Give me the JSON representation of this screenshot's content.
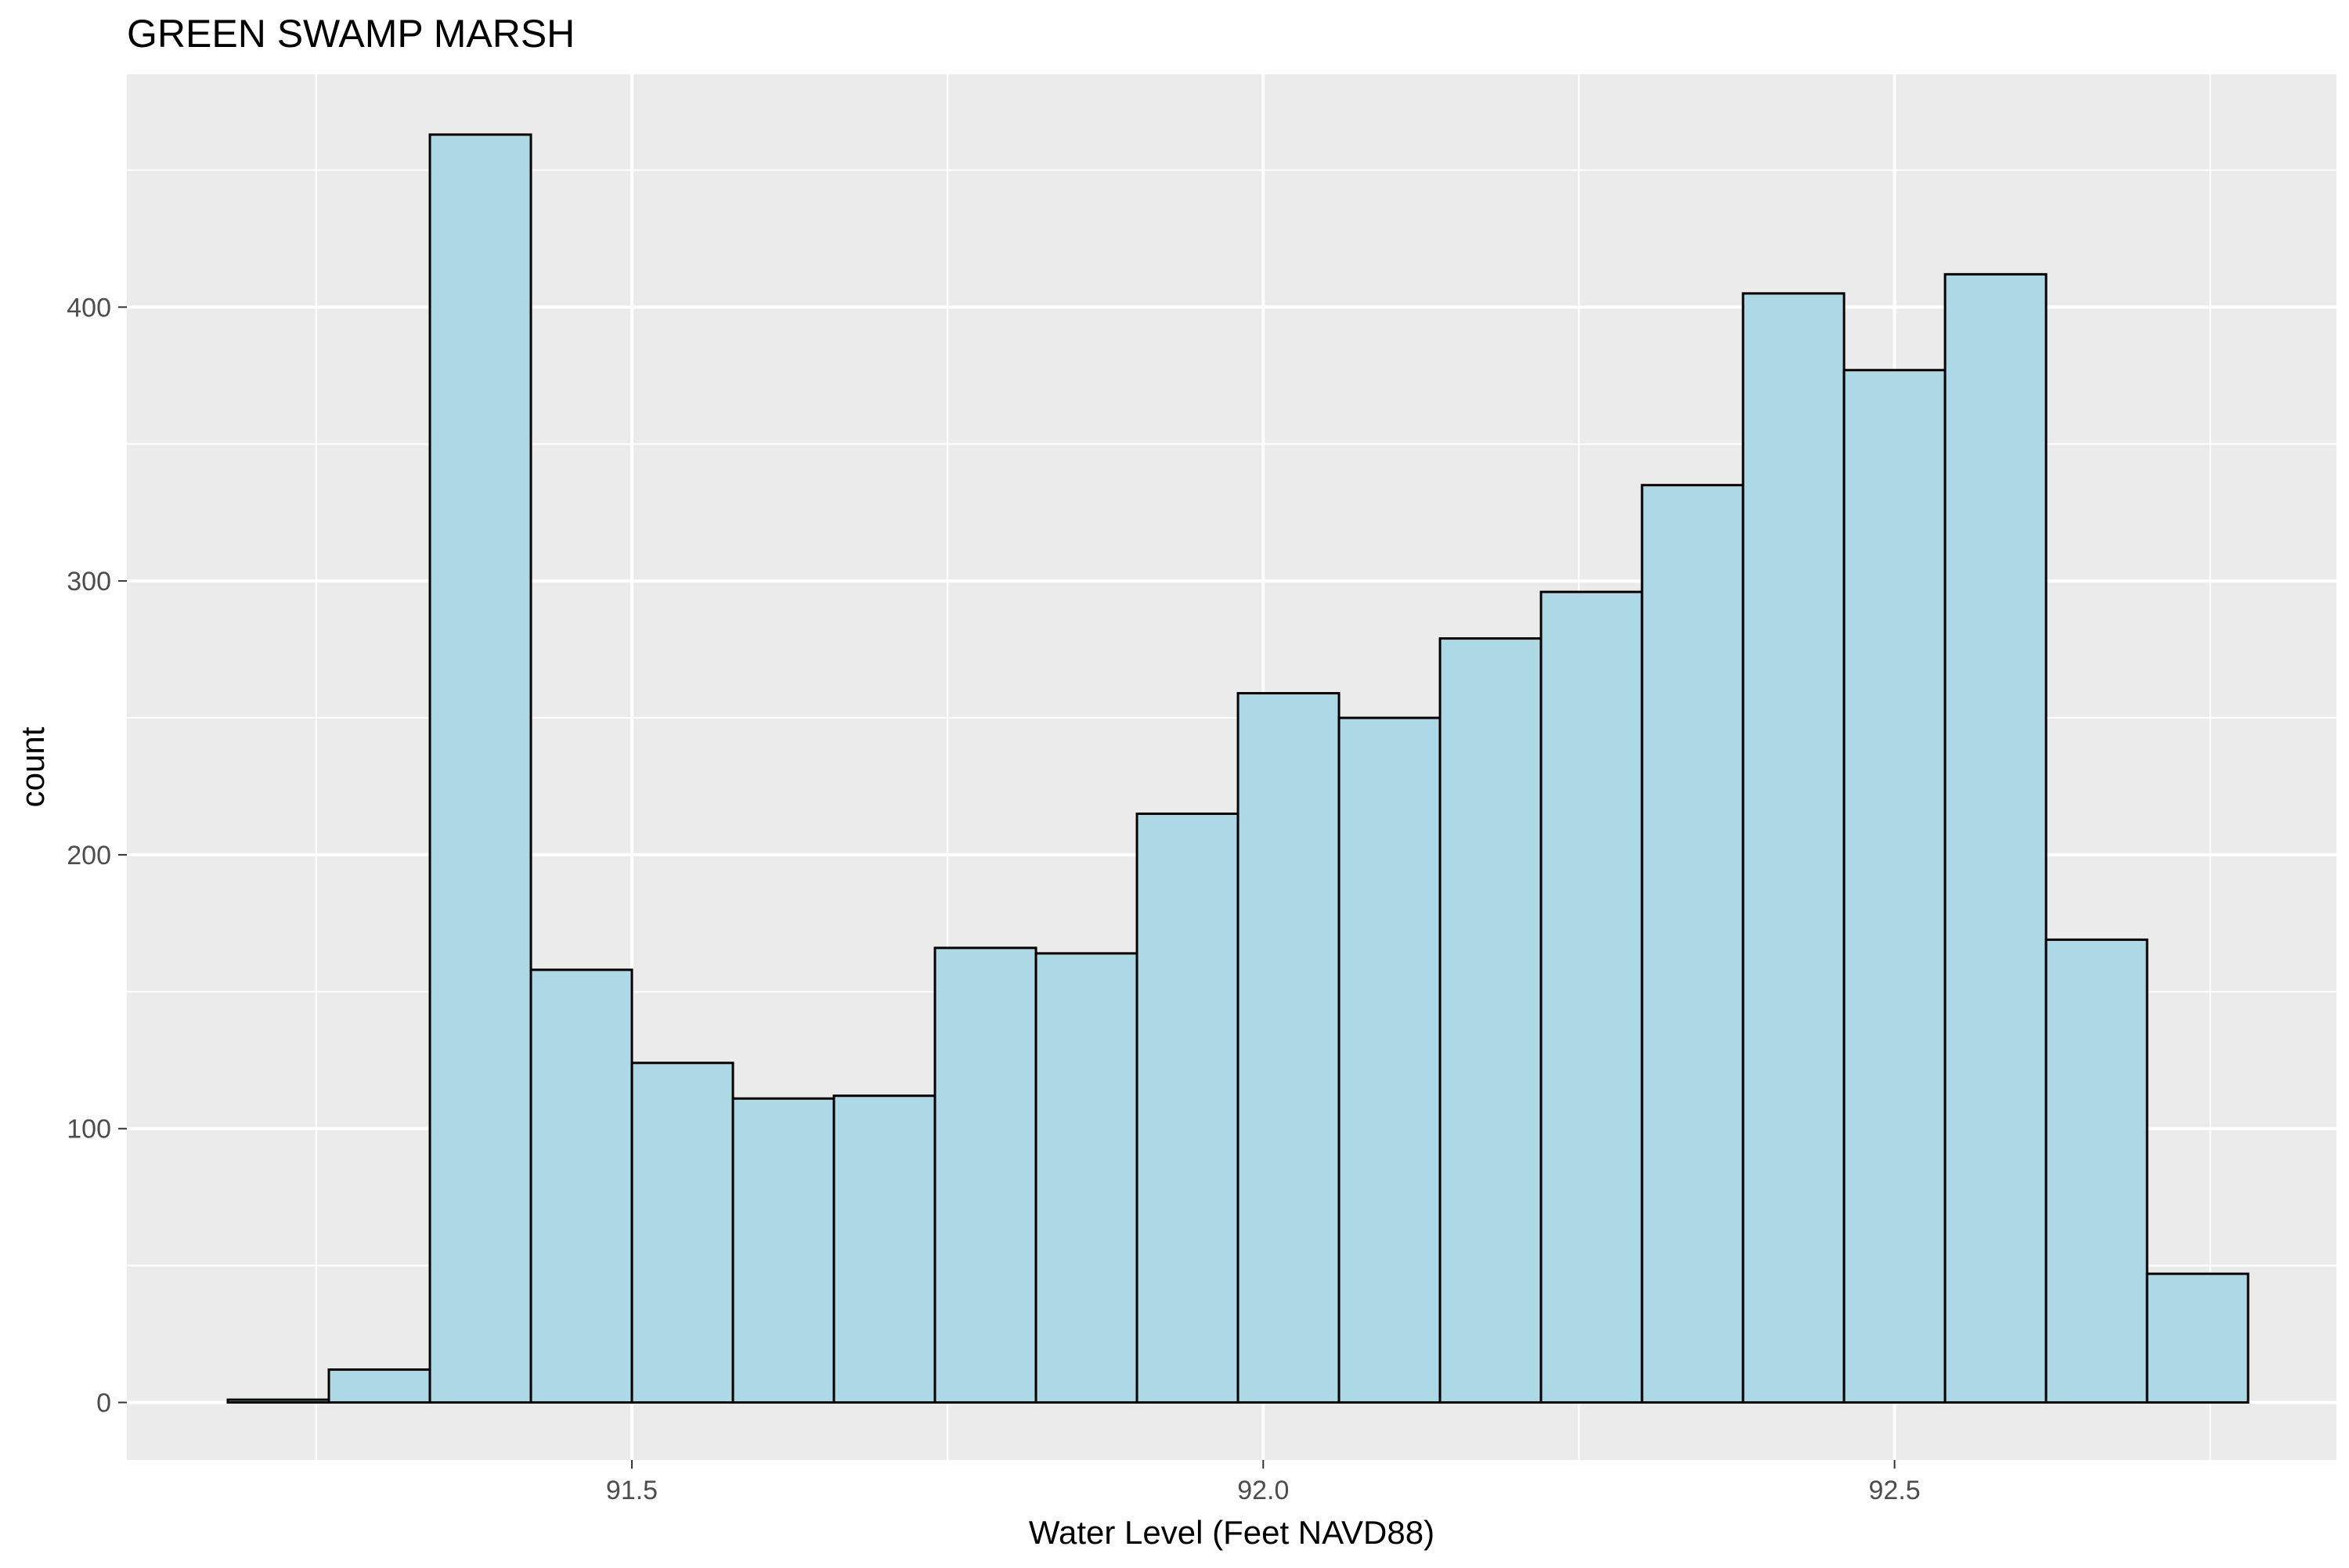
{
  "chart_data": {
    "type": "bar",
    "title": "GREEN SWAMP MARSH",
    "xlabel": "Water Level (Feet NAVD88)",
    "ylabel": "count",
    "bin_width": 0.08,
    "bin_centers": [
      91.22,
      91.3,
      91.38,
      91.46,
      91.54,
      91.62,
      91.7,
      91.78,
      91.86,
      91.94,
      92.02,
      92.1,
      92.18,
      92.26,
      92.34,
      92.42,
      92.5,
      92.58,
      92.66,
      92.74
    ],
    "values": [
      1,
      12,
      463,
      158,
      124,
      111,
      112,
      166,
      164,
      215,
      259,
      250,
      279,
      296,
      335,
      405,
      377,
      412,
      169,
      47
    ],
    "xlim": [
      91.1,
      92.85
    ],
    "ylim": [
      -21,
      485
    ],
    "x_ticks": [
      91.5,
      92.0,
      92.5
    ],
    "x_tick_labels": [
      "91.5",
      "92.0",
      "92.5"
    ],
    "y_ticks": [
      0,
      100,
      200,
      300,
      400
    ],
    "y_tick_labels": [
      "0",
      "100",
      "200",
      "300",
      "400"
    ],
    "grid": true,
    "legend": "none",
    "colors": {
      "panel_background": "#ebebeb",
      "grid": "#ffffff",
      "bar_fill": "#add8e6",
      "bar_outline": "#000000",
      "tick_text": "#4d4d4d",
      "title_text": "#000000"
    }
  }
}
